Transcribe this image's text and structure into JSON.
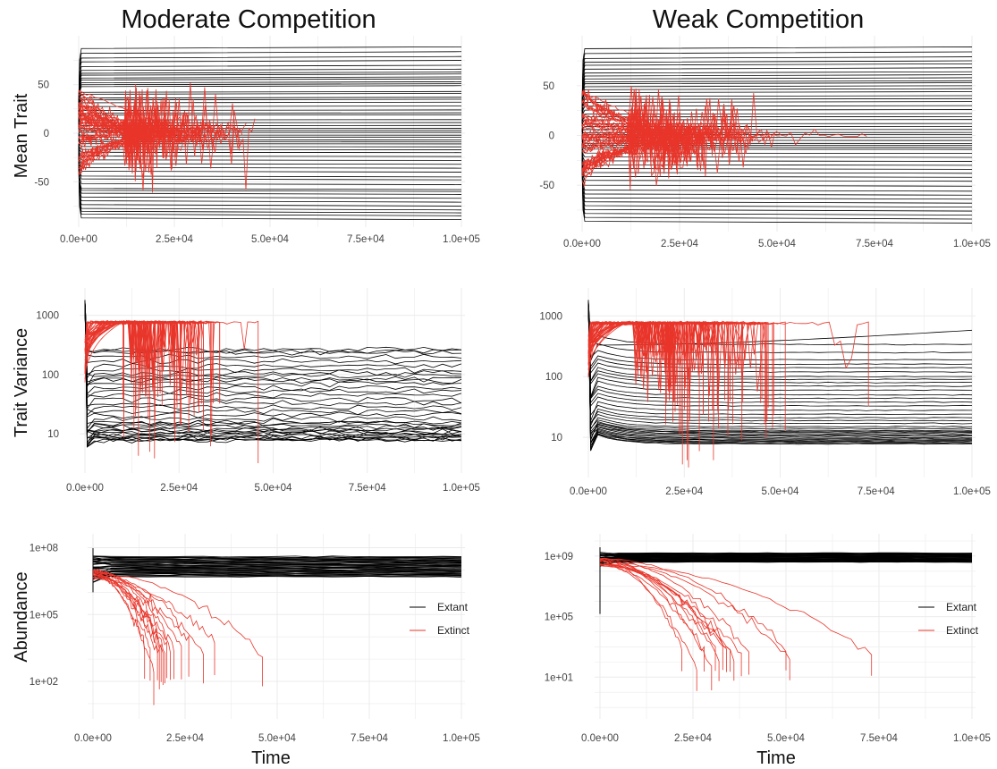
{
  "titles": {
    "left": "Moderate Competition",
    "right": "Weak Competition"
  },
  "row_labels": {
    "mean": "Mean Trait",
    "var": "Trait Variance",
    "abund": "Abundance"
  },
  "x_axis_label": "Time",
  "legend": {
    "extant": "Extant",
    "extinct": "Extinct"
  },
  "colors": {
    "extant": "#000000",
    "extinct": "#e8352a",
    "grid": "#ebebeb"
  },
  "chart_data": [
    {
      "panel": "moderate-mean-trait",
      "type": "line",
      "column_title": "Moderate Competition",
      "ylabel": "Mean Trait",
      "xlim": [
        0,
        100000
      ],
      "ylim": [
        -93,
        93
      ],
      "x_ticks": [
        "0.0e+00",
        "2.5e+04",
        "5.0e+04",
        "7.5e+04",
        "1.0e+05"
      ],
      "y_ticks": [
        "-50",
        "0",
        "50"
      ],
      "extant_final_values": [
        89,
        84,
        79,
        75,
        70,
        66,
        63,
        61,
        58,
        56,
        53,
        51,
        49,
        43,
        41,
        37,
        35,
        32,
        28,
        24,
        21,
        19,
        14,
        11,
        8,
        5,
        3,
        1,
        -2,
        -4,
        -7,
        -9,
        -11,
        -14,
        -17,
        -20,
        -24,
        -28,
        -32,
        -36,
        -40,
        -45,
        -48,
        -53,
        -58,
        -60,
        -63,
        -67,
        -71,
        -75,
        -79,
        -82,
        -85,
        -89
      ],
      "extinct_lineages": 40,
      "extinct_last_time_approx": 46000,
      "grid": true
    },
    {
      "panel": "weak-mean-trait",
      "type": "line",
      "column_title": "Weak Competition",
      "ylabel": "",
      "xlim": [
        0,
        100000
      ],
      "ylim": [
        -93,
        93
      ],
      "x_ticks": [
        "0.0e+00",
        "2.5e+04",
        "5.0e+04",
        "7.5e+04",
        "1.0e+05"
      ],
      "y_ticks": [
        "-50",
        "0",
        "50"
      ],
      "extant_final_values": [
        89,
        84,
        79,
        75,
        72,
        68,
        64,
        61,
        58,
        55,
        53,
        50,
        47,
        44,
        40,
        37,
        34,
        30,
        26,
        22,
        19,
        16,
        12,
        9,
        6,
        3,
        1,
        -2,
        -5,
        -8,
        -10,
        -12,
        -14,
        -18,
        -22,
        -26,
        -30,
        -34,
        -38,
        -42,
        -46,
        -51,
        -56,
        -60,
        -64,
        -68,
        -72,
        -76,
        -80,
        -84,
        -88
      ],
      "extinct_lineages": 45,
      "extinct_last_time_approx": 73000,
      "grid": true
    },
    {
      "panel": "moderate-trait-variance",
      "type": "line",
      "column_title": "Moderate Competition",
      "ylabel": "Trait Variance",
      "y_scale": "log10",
      "xlim": [
        0,
        100000
      ],
      "ylim": [
        2.5,
        2200
      ],
      "x_ticks": [
        "0.0e+00",
        "2.5e+04",
        "5.0e+04",
        "7.5e+04",
        "1.0e+05"
      ],
      "y_ticks": [
        "10",
        "100",
        "1000"
      ],
      "extant_final_values": [
        265,
        250,
        240,
        200,
        170,
        140,
        120,
        105,
        95,
        85,
        80,
        70,
        60,
        52,
        45,
        38,
        33,
        28,
        24,
        21,
        18,
        16,
        15,
        14,
        13,
        12,
        11.5,
        11,
        10.5,
        10,
        9.6,
        9.2,
        8.8,
        8.5,
        8.2,
        8,
        7.8
      ],
      "extinct_plateau_value": 760,
      "extinct_lineages": 40,
      "grid": true
    },
    {
      "panel": "weak-trait-variance",
      "type": "line",
      "column_title": "Weak Competition",
      "ylabel": "",
      "y_scale": "log10",
      "xlim": [
        0,
        100000
      ],
      "ylim": [
        2.5,
        2200
      ],
      "x_ticks": [
        "0.0e+00",
        "2.5e+04",
        "5.0e+04",
        "7.5e+04",
        "1.0e+05"
      ],
      "y_ticks": [
        "10",
        "100",
        "1000"
      ],
      "extant_final_values": [
        580,
        340,
        250,
        190,
        160,
        140,
        120,
        100,
        90,
        80,
        70,
        60,
        50,
        44,
        38,
        33,
        28,
        24,
        21,
        19,
        17,
        15,
        14,
        13,
        12.5,
        12,
        11.5,
        11,
        10.5,
        10,
        9.6,
        9.2,
        8.9,
        8.6,
        8.3,
        8,
        7.8
      ],
      "extinct_plateau_value": 760,
      "extinct_lineages": 45,
      "grid": true
    },
    {
      "panel": "moderate-abundance",
      "type": "line",
      "column_title": "Moderate Competition",
      "ylabel": "Abundance",
      "y_scale": "log10",
      "xlim": [
        0,
        100000
      ],
      "ylim": [
        3,
        200000000
      ],
      "x_ticks": [
        "0.0e+00",
        "2.5e+04",
        "5.0e+04",
        "7.5e+04",
        "1.0e+05"
      ],
      "y_ticks": [
        "1e+02",
        "1e+05",
        "1e+08"
      ],
      "extant_band": [
        5000000,
        40000000
      ],
      "extinct_times": [
        14000,
        15500,
        16500,
        17500,
        18000,
        18500,
        19000,
        19500,
        20000,
        21000,
        22000,
        24000,
        26000,
        30000,
        33000,
        46000
      ],
      "legend": [
        "Extant",
        "Extinct"
      ],
      "legend_position": "right",
      "grid": true
    },
    {
      "panel": "weak-abundance",
      "type": "line",
      "column_title": "Weak Competition",
      "ylabel": "",
      "xlabel": "Time",
      "y_scale": "log10",
      "xlim": [
        0,
        100000
      ],
      "ylim": [
        0.03,
        10000000000
      ],
      "x_ticks": [
        "0.0e+00",
        "2.5e+04",
        "5.0e+04",
        "7.5e+04",
        "1.0e+05"
      ],
      "y_ticks": [
        "1e+01",
        "1e+05",
        "1e+09"
      ],
      "extant_band": [
        400000000,
        1600000000
      ],
      "extinct_times": [
        22000,
        26000,
        28000,
        30000,
        31000,
        32000,
        33000,
        34000,
        35000,
        36000,
        38000,
        40000,
        50000,
        51000,
        73000
      ],
      "legend": [
        "Extant",
        "Extinct"
      ],
      "legend_position": "right",
      "grid": true
    }
  ]
}
